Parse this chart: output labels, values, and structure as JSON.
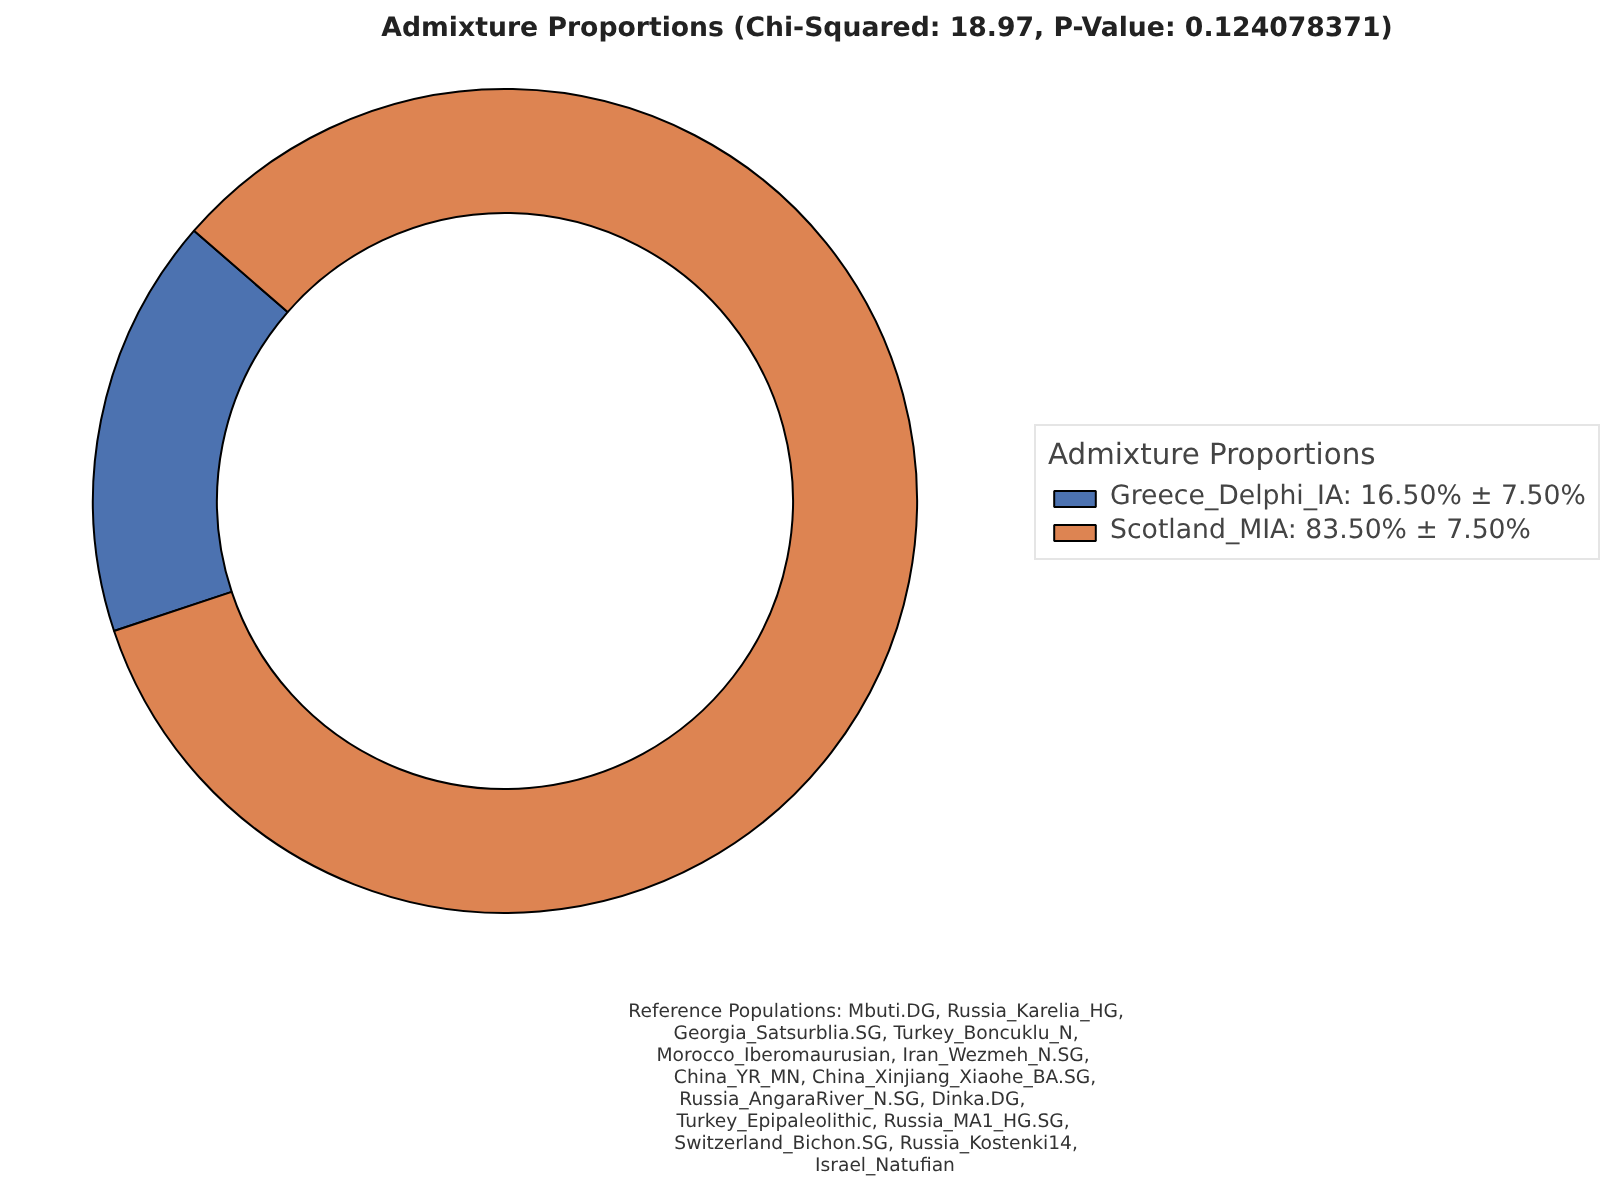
{
  "chart_data": {
    "type": "donut",
    "title": "Admixture Proportions (Chi-Squared: 18.97, P-Value: 0.124078371)",
    "categories": [
      "Greece_Delphi_IA: 16.50% ± 7.50%",
      "Scotland_MIA: 83.50% ± 7.50%"
    ],
    "values": [
      16.5,
      83.5
    ],
    "colors": [
      "#4c72b0",
      "#dd8452"
    ],
    "legend_title": "Admixture Proportions",
    "legend": "right",
    "annotations": [
      "Reference Populations: Mbuti.DG,    Russia_Karelia_HG,\nGeorgia_Satsurblia.SG,    Turkey_Boncuklu_N,\nMorocco_Iberomaurusian,     Iran_Wezmeh_N.SG,\nChina_YR_MN, China_Xinjiang_Xiaohe_BA.SG,\nRussia_AngaraRiver_N.SG,            Dinka.DG,\nTurkey_Epipaleolithic,     Russia_MA1_HG.SG,\nSwitzerland_Bichon.SG,    Russia_Kostenki14,\nIsrael_Natufian"
    ]
  }
}
